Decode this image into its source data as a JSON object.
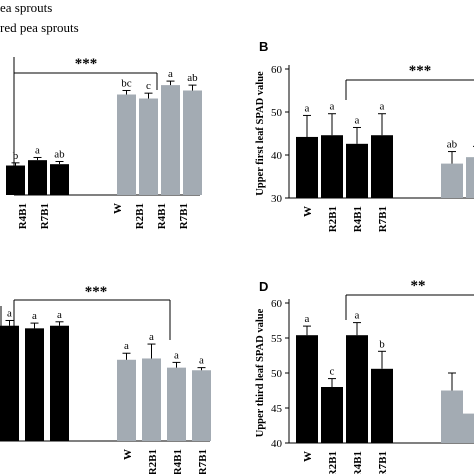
{
  "legend": [
    {
      "text": "ea sprouts",
      "color": "#000000"
    },
    {
      "text": "red pea sprouts",
      "color": "#a3abb3"
    }
  ],
  "colors": {
    "black_bars": "#000000",
    "gray_bars": "#a3abb3"
  },
  "chart_data": [
    {
      "panel": "A",
      "type": "bar",
      "title": "",
      "ylabel": "",
      "ylim": [
        0,
        1.0
      ],
      "visible_categories": [
        "R4B1",
        "R7B1",
        "W",
        "R2B1",
        "R4B1",
        "R7B1"
      ],
      "black_series": {
        "categories": [
          "R2B1",
          "R4B1",
          "R7B1"
        ],
        "values": [
          0.22,
          0.26,
          0.23
        ],
        "errors": [
          0.02,
          0.02,
          0.02
        ],
        "letters": [
          "b",
          "a",
          "ab"
        ]
      },
      "gray_series": {
        "categories": [
          "W",
          "R2B1",
          "R4B1",
          "R7B1"
        ],
        "values": [
          0.75,
          0.72,
          0.82,
          0.78
        ],
        "errors": [
          0.03,
          0.04,
          0.03,
          0.04
        ],
        "letters": [
          "bc",
          "c",
          "a",
          "ab"
        ]
      },
      "significance": "***"
    },
    {
      "panel": "B",
      "type": "bar",
      "title": "",
      "ylabel": "Upper first leaf SPAD value",
      "yticks": [
        30,
        40,
        50,
        60
      ],
      "ylim": [
        30,
        60
      ],
      "black_series": {
        "categories": [
          "W",
          "R2B1",
          "R4B1",
          "R7B1"
        ],
        "values": [
          44.2,
          44.6,
          42.6,
          44.6
        ],
        "errors": [
          5.0,
          5.0,
          3.8,
          5.0
        ],
        "letters": [
          "a",
          "a",
          "a",
          "a"
        ]
      },
      "gray_series": {
        "categories": [
          "W",
          "R2B1"
        ],
        "values": [
          38.0,
          39.5
        ],
        "errors": [
          2.8,
          2.5
        ],
        "letters": [
          "ab",
          "a"
        ]
      },
      "significance": "***"
    },
    {
      "panel": "C",
      "type": "bar",
      "title": "",
      "ylabel": "",
      "ylim": [
        0,
        1.0
      ],
      "visible_categories": [
        "W",
        "R2B1",
        "R4B1",
        "R7B1"
      ],
      "black_series": {
        "categories": [
          "R2B1",
          "R4B1",
          "R7B1"
        ],
        "values": [
          0.88,
          0.86,
          0.88
        ],
        "errors": [
          0.04,
          0.04,
          0.03
        ],
        "letters": [
          "a",
          "a",
          "a"
        ]
      },
      "gray_series": {
        "categories": [
          "W",
          "R2B1",
          "R4B1",
          "R7B1"
        ],
        "values": [
          0.62,
          0.63,
          0.56,
          0.54
        ],
        "errors": [
          0.05,
          0.11,
          0.04,
          0.02
        ],
        "letters": [
          "a",
          "a",
          "a",
          "a"
        ]
      },
      "significance": "***"
    },
    {
      "panel": "D",
      "type": "bar",
      "title": "",
      "ylabel": "Upper third leaf SPAD value",
      "yticks": [
        40,
        45,
        50,
        55,
        60
      ],
      "ylim": [
        40,
        60
      ],
      "categories": [
        "W",
        "R2B1",
        "R4B1",
        "R7B1"
      ],
      "black_series": {
        "categories": [
          "W",
          "R2B1",
          "R4B1",
          "R7B1"
        ],
        "values": [
          55.4,
          48.0,
          55.4,
          50.6
        ],
        "errors": [
          1.3,
          1.2,
          1.8,
          2.5
        ],
        "letters": [
          "a",
          "c",
          "a",
          "b"
        ]
      },
      "gray_series": {
        "categories": [
          "W",
          "R2B1"
        ],
        "values": [
          47.5,
          44.2
        ],
        "errors": [
          2.5,
          0.0
        ],
        "letters": [
          "",
          ""
        ]
      },
      "significance": "**"
    }
  ]
}
